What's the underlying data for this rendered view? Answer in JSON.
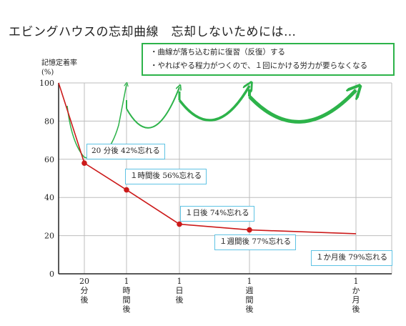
{
  "title": "エビングハウスの忘却曲線　忘却しないためには…",
  "notes": [
    "・曲線が落ち込む前に復習（反復）する",
    "・やればやる程力がつくので、１回にかける労力が要らなくなる"
  ],
  "colors": {
    "curve": "#cc1a1a",
    "review": "#2db34a",
    "callout_border": "#5fc3e4",
    "grid": "#bdbdbd"
  },
  "chart_data": {
    "type": "line",
    "title": "エビングハウスの忘却曲線　忘却しないためには…",
    "ylabel": [
      "記憶定着率",
      "(%)"
    ],
    "ylim": [
      0,
      100
    ],
    "yticks": [
      "0",
      "20",
      "40",
      "60",
      "80",
      "100"
    ],
    "grid": true,
    "x_categories": [
      {
        "id": "20min",
        "label": [
          "20",
          "分",
          "後"
        ]
      },
      {
        "id": "1hour",
        "label": [
          "1",
          "時",
          "間",
          "後"
        ]
      },
      {
        "id": "1day",
        "label": [
          "1",
          "日",
          "後"
        ]
      },
      {
        "id": "1week",
        "label": [
          "1",
          "週",
          "間",
          "後"
        ]
      },
      {
        "id": "1month",
        "label": [
          "1",
          "か",
          "月",
          "後"
        ]
      }
    ],
    "series": [
      {
        "points": [
          {
            "x": "start",
            "y": 100
          },
          {
            "x": "20min",
            "y": 58
          },
          {
            "x": "1hour",
            "y": 44
          },
          {
            "x": "1day",
            "y": 26
          },
          {
            "x": "1week",
            "y": 23
          },
          {
            "x": "1month",
            "y": 21
          }
        ]
      }
    ],
    "annotations": [
      {
        "point": "20min",
        "text": "20 分後 42%忘れる"
      },
      {
        "point": "1hour",
        "text": "１時間後 56%忘れる"
      },
      {
        "point": "1day",
        "text": "１日後 74%忘れる"
      },
      {
        "point": "1week",
        "text": "１週間後 77%忘れる"
      },
      {
        "point": "1month",
        "text": "１か月後 79%忘れる"
      }
    ],
    "review_arrows": [
      "20min",
      "1hour",
      "1day",
      "1week"
    ]
  }
}
